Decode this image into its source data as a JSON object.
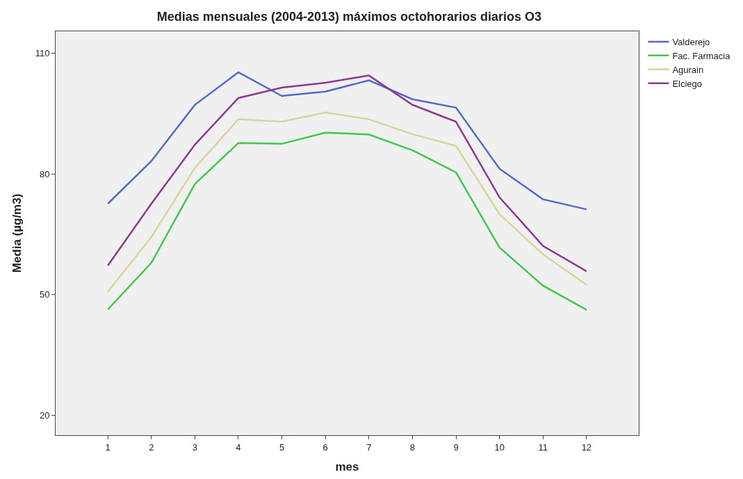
{
  "chart_data": {
    "type": "line",
    "title": "Medias mensuales (2004-2013) máximos octohorarios diarios O3",
    "xlabel": "mes",
    "ylabel": "Media (µg/m3)",
    "x": [
      1,
      2,
      3,
      4,
      5,
      6,
      7,
      8,
      9,
      10,
      11,
      12
    ],
    "xlim": [
      -0.2,
      13.2
    ],
    "xticks": [
      1,
      2,
      3,
      4,
      5,
      6,
      7,
      8,
      9,
      10,
      11,
      12
    ],
    "ylim": [
      15,
      115.5
    ],
    "yticks": [
      20,
      50,
      80,
      110
    ],
    "grid": false,
    "legend": "top right",
    "marker": "none",
    "line_style": "solid",
    "series": [
      {
        "name": "Valderejo",
        "color": "#4f6bc6",
        "values": [
          72.6,
          83.2,
          97.2,
          105.3,
          99.4,
          100.5,
          103.3,
          98.6,
          96.5,
          81.3,
          73.7,
          71.2
        ]
      },
      {
        "name": "Fac. Farmacia",
        "color": "#40c84e",
        "values": [
          46.3,
          57.9,
          77.5,
          87.7,
          87.5,
          90.3,
          89.8,
          85.9,
          80.4,
          61.7,
          52.2,
          46.2
        ]
      },
      {
        "name": "Agurain",
        "color": "#d8d49a",
        "values": [
          50.7,
          64.3,
          81.5,
          93.6,
          93.0,
          95.3,
          93.6,
          89.9,
          87.0,
          70.0,
          60.0,
          52.4
        ]
      },
      {
        "name": "Elciego",
        "color": "#8b3a8f",
        "values": [
          57.2,
          72.6,
          87.3,
          98.9,
          101.5,
          102.7,
          104.5,
          97.2,
          93.0,
          74.2,
          62.1,
          55.8
        ]
      }
    ]
  }
}
